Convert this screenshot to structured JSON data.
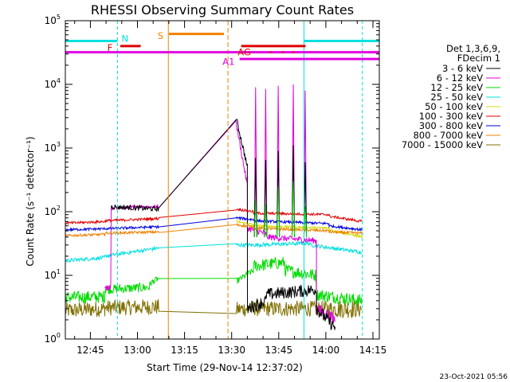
{
  "chart_data": {
    "type": "line",
    "title": "RHESSI Observing Summary Count Rates",
    "xlabel": "Start Time (29-Nov-14 12:37:02)",
    "ylabel": "Count Rate (s⁻¹ detector⁻¹)",
    "y_scale": "log",
    "ylim": [
      1,
      100000
    ],
    "xlim_minutes": [
      0,
      100
    ],
    "x_ticks": [
      {
        "t": 7.97,
        "label": "12:45"
      },
      {
        "t": 22.97,
        "label": "13:00"
      },
      {
        "t": 37.97,
        "label": "13:15"
      },
      {
        "t": 52.97,
        "label": "13:30"
      },
      {
        "t": 67.97,
        "label": "13:45"
      },
      {
        "t": 82.97,
        "label": "14:00"
      },
      {
        "t": 97.97,
        "label": "14:15"
      }
    ],
    "y_ticks": [
      {
        "v": 1,
        "base": "10",
        "exp": "0"
      },
      {
        "v": 10,
        "base": "10",
        "exp": "1"
      },
      {
        "v": 100,
        "base": "10",
        "exp": "2"
      },
      {
        "v": 1000,
        "base": "10",
        "exp": "3"
      },
      {
        "v": 10000,
        "base": "10",
        "exp": "4"
      },
      {
        "v": 100000,
        "base": "10",
        "exp": "5"
      }
    ],
    "legend_header": [
      "Det 1,3,6,9,",
      "FDecim 1"
    ],
    "legend_position": "right",
    "series": [
      {
        "name": "3 - 6 keV",
        "color": "#000000"
      },
      {
        "name": "6 - 12 keV",
        "color": "#e000e0"
      },
      {
        "name": "12 - 25 keV",
        "color": "#00dd00"
      },
      {
        "name": "25 - 50 keV",
        "color": "#00e0e0"
      },
      {
        "name": "50 - 100 keV",
        "color": "#d8d800"
      },
      {
        "name": "100 - 300 keV",
        "color": "#e00000"
      },
      {
        "name": "300 - 800 keV",
        "color": "#0000e0"
      },
      {
        "name": "800 - 7000 keV",
        "color": "#f08000"
      },
      {
        "name": "7000 - 15000 keV",
        "color": "#807000"
      }
    ],
    "flags": [
      {
        "label": "N",
        "color": "#00e0e0"
      },
      {
        "label": "F",
        "color": "#e00000"
      },
      {
        "label": "S",
        "color": "#f08000"
      },
      {
        "label": "AG",
        "color": "#e00000"
      },
      {
        "label": "A1",
        "color": "#e000e0"
      }
    ],
    "timestamp": "23-Oct-2021 05:56"
  }
}
